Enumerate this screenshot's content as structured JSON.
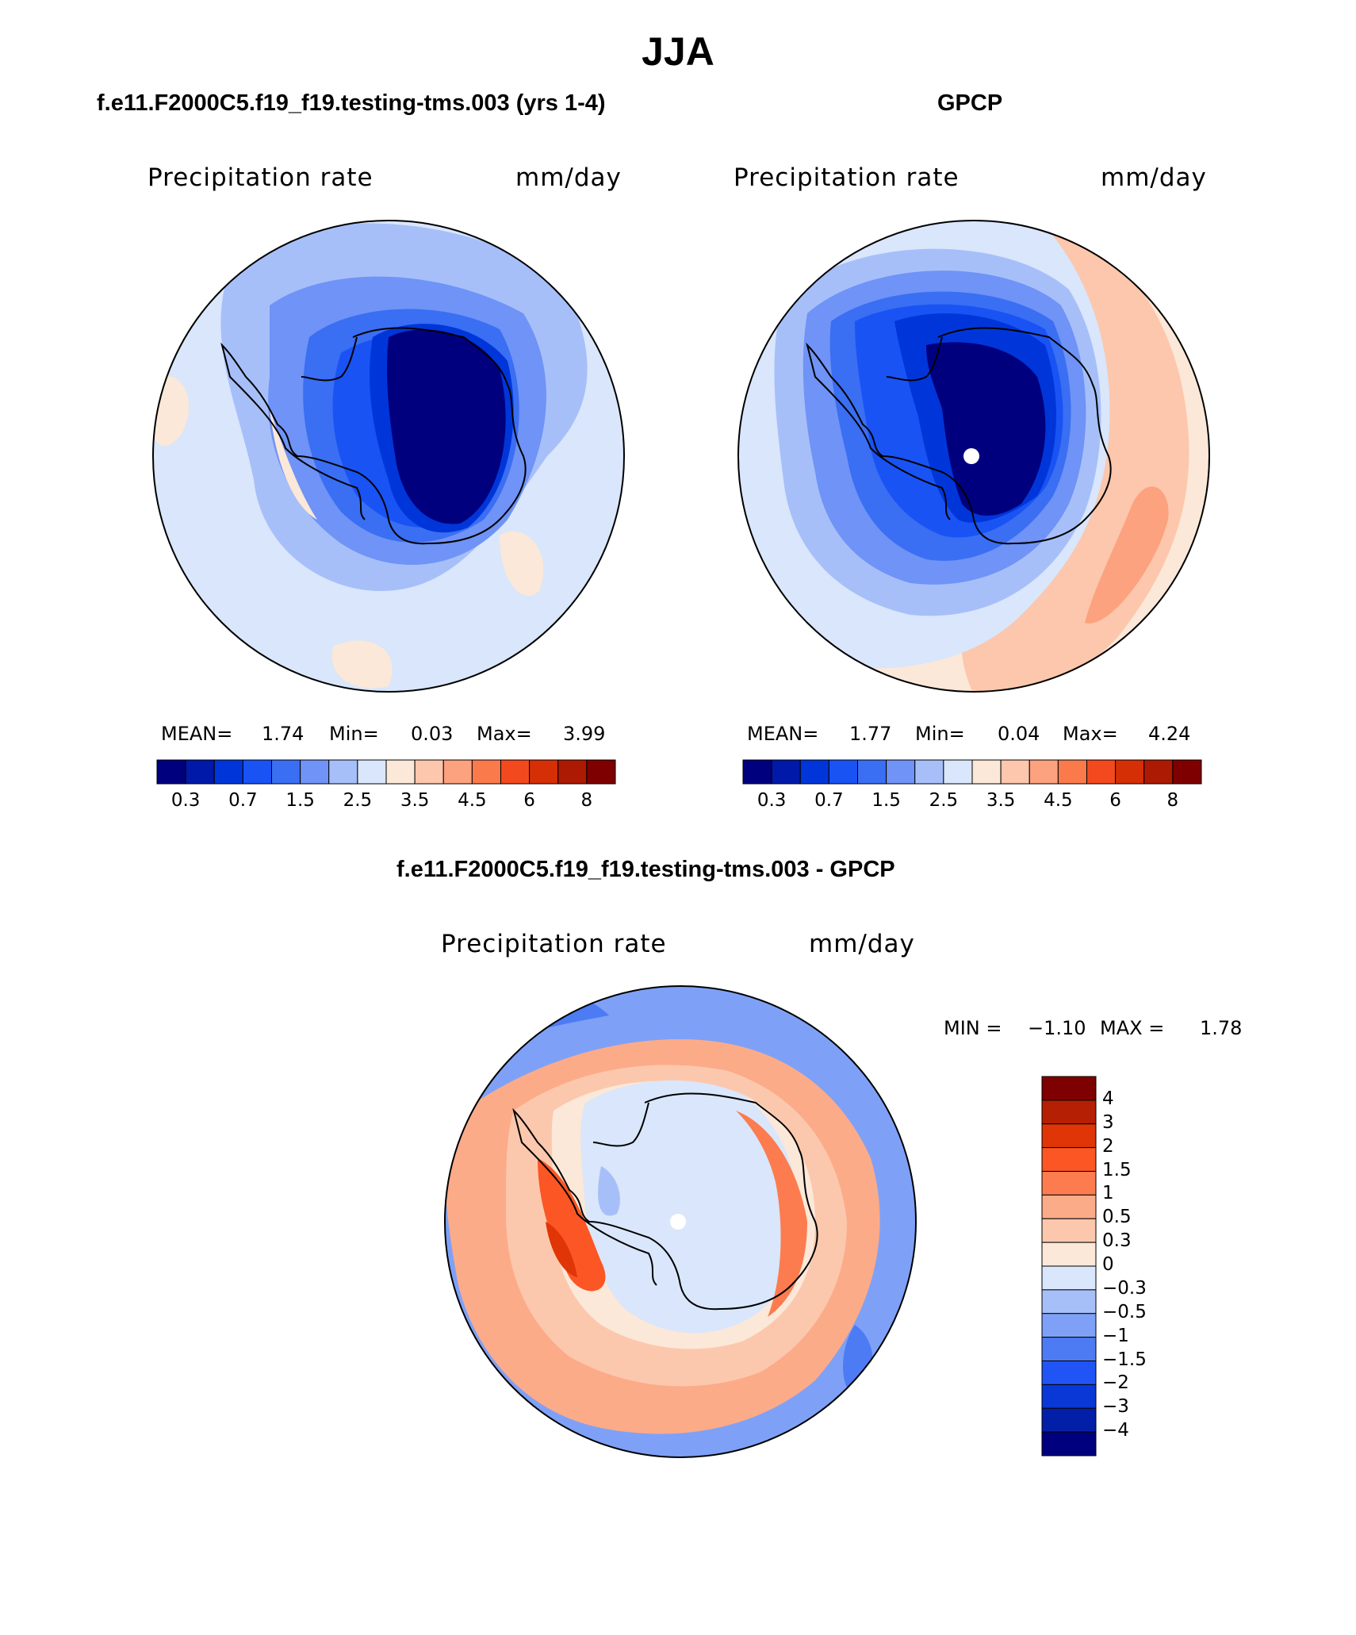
{
  "title": "JJA",
  "palette": {
    "abs": [
      "#00007f",
      "#0019a8",
      "#0036d9",
      "#1953f4",
      "#3a6ef3",
      "#6f93f6",
      "#a7bff9",
      "#d9e6fb",
      "#fbe8d8",
      "#fcc7ac",
      "#fca27f",
      "#fb7a4c",
      "#f24a1e",
      "#d52f06",
      "#ad1a03",
      "#7f0000"
    ],
    "diff": [
      "#7f0000",
      "#b51f03",
      "#e03507",
      "#fb5624",
      "#fc7c4f",
      "#fcab89",
      "#fcc8ad",
      "#fbe8d8",
      "#d9e6fb",
      "#a7bff9",
      "#7ea1f7",
      "#4d7bf4",
      "#2154f4",
      "#0a38d6",
      "#0220a7",
      "#00007f"
    ],
    "coast": "#000000"
  },
  "chart_data": [
    {
      "type": "heatmap",
      "projection": "south-polar-stereographic",
      "title": "f.e11.F2000C5.f19_f19.testing-tms.003 (yrs 1-4)",
      "left_label": "Precipitation rate",
      "right_label": "mm/day",
      "stats": {
        "mean_label": "MEAN=",
        "mean": "1.74",
        "min_label": "Min=",
        "min": "0.03",
        "max_label": "Max=",
        "max": "3.99"
      },
      "colorbar": {
        "orientation": "horizontal",
        "levels": [
          "0.2",
          "0.3",
          "0.5",
          "0.7",
          "1",
          "1.5",
          "2",
          "2.5",
          "3",
          "3.5",
          "4",
          "4.5",
          "5",
          "6",
          "7",
          "8"
        ],
        "tick_labels": [
          "0.3",
          "0.7",
          "1.5",
          "2.5",
          "3.5",
          "4.5",
          "6",
          "8"
        ]
      }
    },
    {
      "type": "heatmap",
      "projection": "south-polar-stereographic",
      "title": "GPCP",
      "left_label": "Precipitation rate",
      "right_label": "mm/day",
      "stats": {
        "mean_label": "MEAN=",
        "mean": "1.77",
        "min_label": "Min=",
        "min": "0.04",
        "max_label": "Max=",
        "max": "4.24"
      },
      "colorbar": {
        "orientation": "horizontal",
        "levels": [
          "0.2",
          "0.3",
          "0.5",
          "0.7",
          "1",
          "1.5",
          "2",
          "2.5",
          "3",
          "3.5",
          "4",
          "4.5",
          "5",
          "6",
          "7",
          "8"
        ],
        "tick_labels": [
          "0.3",
          "0.7",
          "1.5",
          "2.5",
          "3.5",
          "4.5",
          "6",
          "8"
        ]
      }
    },
    {
      "type": "heatmap",
      "projection": "south-polar-stereographic",
      "title": "f.e11.F2000C5.f19_f19.testing-tms.003 - GPCP",
      "left_label": "Precipitation rate",
      "right_label": "mm/day",
      "stats": {
        "min_label": "MIN =",
        "min": "−1.10",
        "max_label": "MAX =",
        "max": "1.78"
      },
      "colorbar": {
        "orientation": "vertical",
        "tick_labels": [
          "4",
          "3",
          "2",
          "1.5",
          "1",
          "0.5",
          "0.3",
          "0",
          "−0.3",
          "−0.5",
          "−1",
          "−1.5",
          "−2",
          "−3",
          "−4"
        ]
      }
    }
  ]
}
